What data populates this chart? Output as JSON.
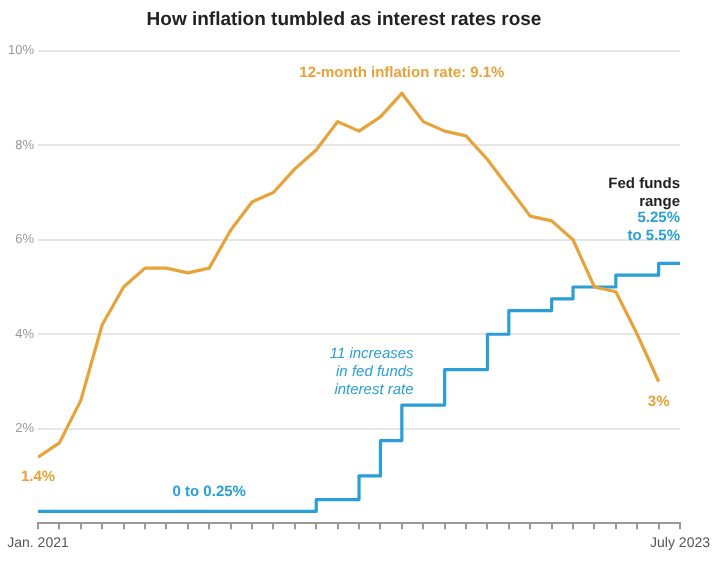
{
  "chart_data": {
    "type": "line",
    "title": "How inflation tumbled as interest rates rose",
    "x": [
      "2021-01",
      "2021-02",
      "2021-03",
      "2021-04",
      "2021-05",
      "2021-06",
      "2021-07",
      "2021-08",
      "2021-09",
      "2021-10",
      "2021-11",
      "2021-12",
      "2022-01",
      "2022-02",
      "2022-03",
      "2022-04",
      "2022-05",
      "2022-06",
      "2022-07",
      "2022-08",
      "2022-09",
      "2022-10",
      "2022-11",
      "2022-12",
      "2023-01",
      "2023-02",
      "2023-03",
      "2023-04",
      "2023-05",
      "2023-06",
      "2023-07"
    ],
    "series": [
      {
        "type": "line",
        "color": "#e8a23a",
        "values": [
          1.4,
          1.7,
          2.6,
          4.2,
          5.0,
          5.4,
          5.4,
          5.3,
          5.4,
          6.2,
          6.8,
          7.0,
          7.5,
          7.9,
          8.5,
          8.3,
          8.6,
          9.1,
          8.5,
          8.3,
          8.2,
          7.7,
          7.1,
          6.5,
          6.4,
          6.0,
          5.0,
          4.9,
          4.0,
          3.0,
          null
        ]
      },
      {
        "type": "step",
        "color": "#2a9fd6",
        "values": [
          0.25,
          0.25,
          0.25,
          0.25,
          0.25,
          0.25,
          0.25,
          0.25,
          0.25,
          0.25,
          0.25,
          0.25,
          0.25,
          0.25,
          0.5,
          0.5,
          1.0,
          1.75,
          2.5,
          2.5,
          3.25,
          3.25,
          4.0,
          4.5,
          4.5,
          4.75,
          5.0,
          5.0,
          5.25,
          5.25,
          5.5
        ]
      }
    ],
    "xlim": [
      "2021-01",
      "2023-07"
    ],
    "xticks": [
      {
        "value": "2021-01",
        "label": "Jan. 2021"
      },
      {
        "value": "2021-02",
        "label": null
      },
      {
        "value": "2021-03",
        "label": null
      },
      {
        "value": "2021-04",
        "label": null
      },
      {
        "value": "2021-05",
        "label": null
      },
      {
        "value": "2021-06",
        "label": null
      },
      {
        "value": "2021-07",
        "label": null
      },
      {
        "value": "2021-08",
        "label": null
      },
      {
        "value": "2021-09",
        "label": null
      },
      {
        "value": "2021-10",
        "label": null
      },
      {
        "value": "2021-11",
        "label": null
      },
      {
        "value": "2021-12",
        "label": null
      },
      {
        "value": "2022-01",
        "label": null
      },
      {
        "value": "2022-02",
        "label": null
      },
      {
        "value": "2022-03",
        "label": null
      },
      {
        "value": "2022-04",
        "label": null
      },
      {
        "value": "2022-05",
        "label": null
      },
      {
        "value": "2022-06",
        "label": null
      },
      {
        "value": "2022-07",
        "label": null
      },
      {
        "value": "2022-08",
        "label": null
      },
      {
        "value": "2022-09",
        "label": null
      },
      {
        "value": "2022-10",
        "label": null
      },
      {
        "value": "2022-11",
        "label": null
      },
      {
        "value": "2022-12",
        "label": null
      },
      {
        "value": "2023-01",
        "label": null
      },
      {
        "value": "2023-02",
        "label": null
      },
      {
        "value": "2023-03",
        "label": null
      },
      {
        "value": "2023-04",
        "label": null
      },
      {
        "value": "2023-05",
        "label": null
      },
      {
        "value": "2023-06",
        "label": null
      },
      {
        "value": "2023-07",
        "label": "July 2023"
      }
    ],
    "ylim": [
      0,
      10
    ],
    "yticks": [
      {
        "value": 2,
        "label": "2%"
      },
      {
        "value": 4,
        "label": "4%"
      },
      {
        "value": 6,
        "label": "6%"
      },
      {
        "value": 8,
        "label": "8%"
      },
      {
        "value": 10,
        "label": "10%"
      }
    ],
    "grid": "y",
    "legend": false,
    "marker": "none",
    "annotations": [
      {
        "text": "12-month inflation rate: 9.1%",
        "x": "2022-06",
        "y": 9.1
      },
      {
        "text": "1.4%",
        "x": "2021-01",
        "y": 1.4
      },
      {
        "text": "3%",
        "x": "2023-06",
        "y": 3.0
      },
      {
        "text": "0 to 0.25%",
        "x": "2021-09",
        "y": 0.25
      },
      "11 increases\nin fed funds\ninterest rate",
      "Fed funds\nrange",
      {
        "text": "5.25%\nto 5.5%",
        "x": "2023-07",
        "y": 5.5
      }
    ]
  }
}
